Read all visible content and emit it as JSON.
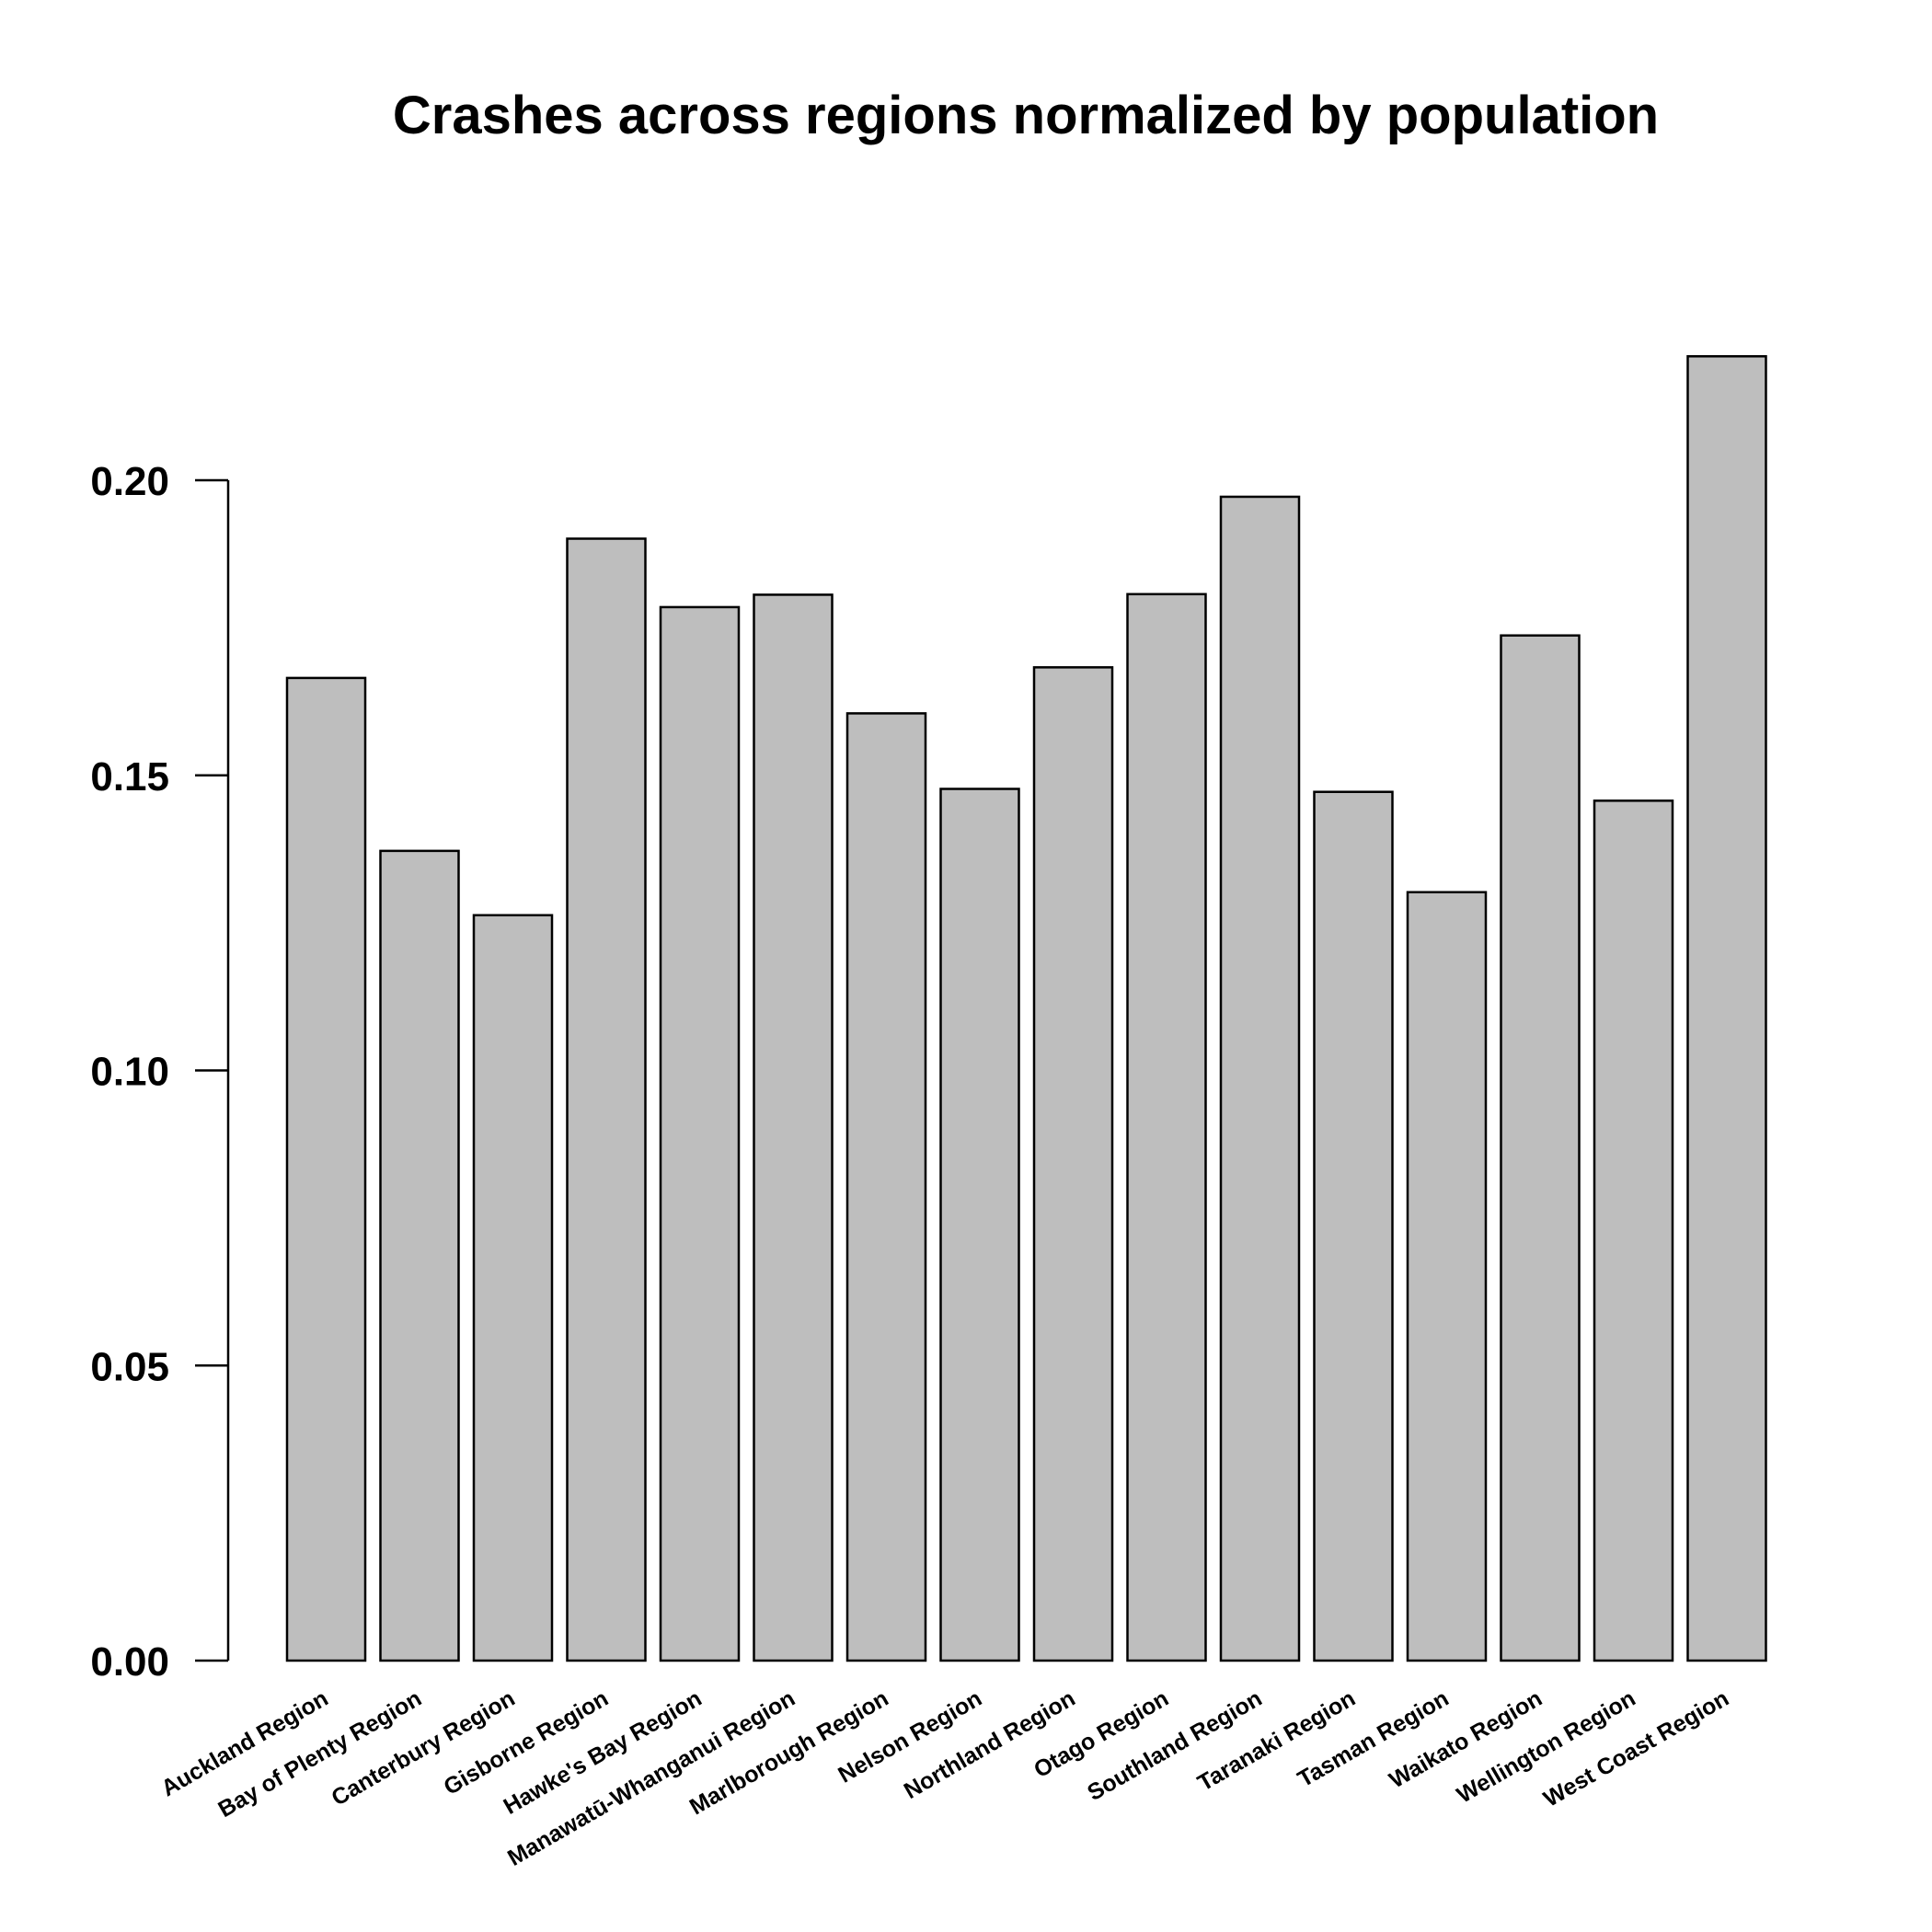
{
  "chart_data": {
    "type": "bar",
    "title": "Crashes across regions normalized by population",
    "xlabel": "",
    "ylabel": "",
    "categories": [
      "Auckland Region",
      "Bay of Plenty Region",
      "Canterbury Region",
      "Gisborne Region",
      "Hawke's Bay Region",
      "Manawatū-Whanganui Region",
      "Marlborough Region",
      "Nelson Region",
      "Northland Region",
      "Otago Region",
      "Southland Region",
      "Taranaki Region",
      "Tasman Region",
      "Waikato Region",
      "Wellington Region",
      "West Coast Region"
    ],
    "values": [
      0.1665,
      0.1372,
      0.1263,
      0.1901,
      0.1785,
      0.1806,
      0.1605,
      0.1477,
      0.1683,
      0.1807,
      0.1972,
      0.1472,
      0.1302,
      0.1737,
      0.1457,
      0.221
    ],
    "ylim": [
      0,
      0.2
    ],
    "yticks": [
      "0.00",
      "0.05",
      "0.10",
      "0.15",
      "0.20"
    ],
    "grid": false,
    "legend": "none",
    "colors": {
      "bar_fill": "#bebebe",
      "bar_stroke": "#000000",
      "axis": "#000000",
      "background": "#ffffff"
    }
  }
}
